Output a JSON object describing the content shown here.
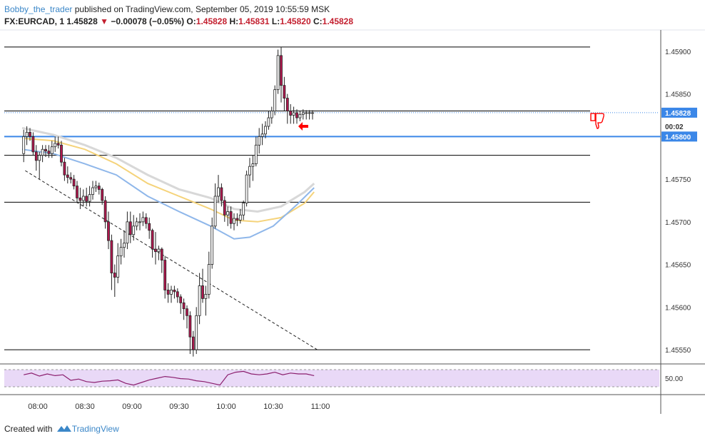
{
  "header": {
    "author": "Bobby_the_trader",
    "published": "published on TradingView.com, September 05, 2019 10:55:59 MSK"
  },
  "symbol_bar": {
    "symbol": "FX:EURCAD, 1",
    "last": "1.45828",
    "direction_icon": "down-triangle",
    "change": "−0.00078 (−0.05%)",
    "o_label": "O:",
    "o": "1.45828",
    "h_label": "H:",
    "h": "1.45831",
    "l_label": "L:",
    "l": "1.45820",
    "c_label": "C:",
    "c": "1.45828"
  },
  "footer": {
    "created_with": "Created with",
    "brand": "TradingView",
    "brand_icon": "tradingview-logo-icon"
  },
  "colors": {
    "up": "#ffffff",
    "down": "#b2184f",
    "candle_border": "#222222",
    "ma_fast": "#8fb7ea",
    "ma_mid": "#f5d37a",
    "ma_slow": "#d8d8d8",
    "hline": "#000000",
    "blue_level": "#3b87e8",
    "rsi_line": "#8b1e6e",
    "rsi_band": "#e9d9f7",
    "arrow": "#ff0000"
  },
  "chart_data": [
    {
      "type": "candlestick",
      "title": "",
      "xlabel": "",
      "ylabel": "",
      "ylim": [
        1.45535,
        1.45925
      ],
      "x_ticks": [
        "08:00",
        "08:30",
        "09:00",
        "09:30",
        "10:00",
        "10:30",
        "11:00"
      ],
      "y_ticks": [
        "1.45900",
        "1.45850",
        "1.45750",
        "1.45700",
        "1.45650",
        "1.45600",
        "1.45550"
      ],
      "price_labels": [
        {
          "text": "1.45828",
          "value": 1.45828,
          "kind": "last"
        },
        {
          "text": "00:02",
          "value": 1.45812,
          "kind": "countdown"
        },
        {
          "text": "1.45800",
          "value": 1.458,
          "kind": "level"
        }
      ],
      "horizontal_levels": [
        1.45905,
        1.4583,
        1.458,
        1.45778,
        1.45723,
        1.4555
      ],
      "trendline": [
        {
          "x": "07:52",
          "y": 1.4576
        },
        {
          "x": "10:58",
          "y": 1.4555
        }
      ],
      "series": [
        {
          "kind": "ohlc",
          "x": [
            "07:51",
            "07:53",
            "07:55",
            "07:57",
            "07:59",
            "08:01",
            "08:03",
            "08:05",
            "08:07",
            "08:09",
            "08:11",
            "08:13",
            "08:15",
            "08:17",
            "08:19",
            "08:21",
            "08:23",
            "08:25",
            "08:27",
            "08:29",
            "08:31",
            "08:33",
            "08:35",
            "08:37",
            "08:39",
            "08:41",
            "08:43",
            "08:45",
            "08:47",
            "08:49",
            "08:51",
            "08:53",
            "08:55",
            "08:57",
            "08:59",
            "09:01",
            "09:03",
            "09:05",
            "09:07",
            "09:09",
            "09:11",
            "09:13",
            "09:15",
            "09:17",
            "09:19",
            "09:21",
            "09:23",
            "09:25",
            "09:27",
            "09:29",
            "09:31",
            "09:33",
            "09:35",
            "09:37",
            "09:39",
            "09:41",
            "09:43",
            "09:45",
            "09:47",
            "09:49",
            "09:51",
            "09:53",
            "09:55",
            "09:57",
            "09:59",
            "10:01",
            "10:03",
            "10:05",
            "10:07",
            "10:09",
            "10:11",
            "10:13",
            "10:15",
            "10:17",
            "10:19",
            "10:21",
            "10:23",
            "10:25",
            "10:27",
            "10:29",
            "10:31",
            "10:33",
            "10:35",
            "10:37",
            "10:39",
            "10:41",
            "10:43",
            "10:45",
            "10:47",
            "10:49",
            "10:51",
            "10:53",
            "10:55"
          ],
          "open": [
            1.4578,
            1.458,
            1.45805,
            1.458,
            1.45782,
            1.45772,
            1.45778,
            1.45785,
            1.45783,
            1.4578,
            1.45788,
            1.45792,
            1.4579,
            1.4577,
            1.45755,
            1.45752,
            1.4575,
            1.45742,
            1.45728,
            1.45725,
            1.4573,
            1.45724,
            1.45732,
            1.4574,
            1.45742,
            1.45738,
            1.45725,
            1.457,
            1.45678,
            1.4564,
            1.45635,
            1.4566,
            1.4567,
            1.45675,
            1.457,
            1.45685,
            1.45695,
            1.457,
            1.457,
            1.45705,
            1.45698,
            1.4569,
            1.45668,
            1.45665,
            1.45668,
            1.45655,
            1.4562,
            1.45615,
            1.4562,
            1.45618,
            1.45612,
            1.45605,
            1.45598,
            1.4559,
            1.45565,
            1.4555,
            1.4559,
            1.45625,
            1.4561,
            1.45615,
            1.4565,
            1.45695,
            1.4573,
            1.4574,
            1.45725,
            1.45708,
            1.45712,
            1.45698,
            1.45704,
            1.45702,
            1.45708,
            1.45722,
            1.45755,
            1.45765,
            1.45768,
            1.4579,
            1.458,
            1.45803,
            1.45812,
            1.45822,
            1.4583,
            1.45855,
            1.45895,
            1.4586,
            1.45845,
            1.4583,
            1.45825,
            1.45828,
            1.45822,
            1.45826,
            1.45828,
            1.45828,
            1.45828
          ],
          "high": [
            1.45808,
            1.45812,
            1.4581,
            1.45805,
            1.4579,
            1.45782,
            1.4579,
            1.4579,
            1.4579,
            1.45795,
            1.458,
            1.458,
            1.45795,
            1.45775,
            1.45765,
            1.45758,
            1.45755,
            1.45748,
            1.4574,
            1.45738,
            1.4574,
            1.45742,
            1.45748,
            1.45748,
            1.45746,
            1.4574,
            1.4573,
            1.45712,
            1.45685,
            1.4565,
            1.45675,
            1.4568,
            1.4569,
            1.45712,
            1.45712,
            1.45708,
            1.45705,
            1.4571,
            1.45712,
            1.4571,
            1.45705,
            1.45692,
            1.45688,
            1.45672,
            1.4567,
            1.4566,
            1.45628,
            1.45625,
            1.45625,
            1.45622,
            1.45615,
            1.4561,
            1.45602,
            1.45595,
            1.45572,
            1.456,
            1.4564,
            1.45645,
            1.45625,
            1.45665,
            1.45705,
            1.45745,
            1.45755,
            1.45745,
            1.4573,
            1.45718,
            1.45718,
            1.4571,
            1.4571,
            1.45715,
            1.45725,
            1.4576,
            1.45775,
            1.45778,
            1.458,
            1.4581,
            1.45815,
            1.45818,
            1.4583,
            1.45835,
            1.4586,
            1.45902,
            1.45905,
            1.4587,
            1.4585,
            1.45838,
            1.45835,
            1.45832,
            1.4583,
            1.45832,
            1.45831,
            1.45831,
            1.45831
          ],
          "low": [
            1.4577,
            1.4579,
            1.45795,
            1.45778,
            1.4576,
            1.4575,
            1.4577,
            1.45776,
            1.45775,
            1.45775,
            1.45782,
            1.45786,
            1.45765,
            1.45748,
            1.45745,
            1.45745,
            1.45738,
            1.45722,
            1.45715,
            1.45718,
            1.45718,
            1.45718,
            1.45726,
            1.45735,
            1.45732,
            1.4572,
            1.45692,
            1.45668,
            1.4562,
            1.45612,
            1.45628,
            1.4565,
            1.45658,
            1.45668,
            1.45675,
            1.45678,
            1.4569,
            1.4569,
            1.45695,
            1.45692,
            1.4568,
            1.45658,
            1.4565,
            1.45655,
            1.4564,
            1.4561,
            1.45605,
            1.45605,
            1.4561,
            1.45605,
            1.45592,
            1.45585,
            1.45575,
            1.45545,
            1.45542,
            1.45545,
            1.4558,
            1.45605,
            1.4559,
            1.4561,
            1.45645,
            1.45692,
            1.45722,
            1.45718,
            1.457,
            1.45695,
            1.45692,
            1.4569,
            1.45695,
            1.45698,
            1.45702,
            1.45718,
            1.4574,
            1.45748,
            1.45765,
            1.4578,
            1.4579,
            1.45798,
            1.45808,
            1.45815,
            1.45825,
            1.4585,
            1.4584,
            1.4583,
            1.45815,
            1.45815,
            1.45815,
            1.45815,
            1.45818,
            1.4582,
            1.4582,
            1.4582,
            1.4582
          ],
          "close": [
            1.458,
            1.45805,
            1.458,
            1.45782,
            1.45772,
            1.45778,
            1.45785,
            1.45783,
            1.4578,
            1.45788,
            1.45792,
            1.4579,
            1.4577,
            1.45755,
            1.45752,
            1.4575,
            1.45742,
            1.45728,
            1.45725,
            1.4573,
            1.45724,
            1.45732,
            1.4574,
            1.45742,
            1.45738,
            1.45725,
            1.457,
            1.45678,
            1.4564,
            1.45635,
            1.4566,
            1.4567,
            1.45675,
            1.457,
            1.45685,
            1.45695,
            1.457,
            1.457,
            1.45705,
            1.45698,
            1.4569,
            1.45668,
            1.45665,
            1.45668,
            1.45655,
            1.4562,
            1.45615,
            1.4562,
            1.45618,
            1.45612,
            1.45605,
            1.45598,
            1.4559,
            1.45565,
            1.4555,
            1.4559,
            1.45625,
            1.4561,
            1.45615,
            1.4565,
            1.45695,
            1.4573,
            1.4574,
            1.45725,
            1.45708,
            1.45712,
            1.45698,
            1.45704,
            1.45702,
            1.45708,
            1.45722,
            1.45755,
            1.45765,
            1.45768,
            1.4579,
            1.458,
            1.45803,
            1.45812,
            1.45822,
            1.4583,
            1.45855,
            1.45895,
            1.4586,
            1.45845,
            1.4583,
            1.45825,
            1.45828,
            1.45822,
            1.45826,
            1.45828,
            1.45828,
            1.45828,
            1.45828
          ]
        },
        {
          "kind": "line",
          "color_key": "ma_slow",
          "x": [
            "07:50",
            "08:10",
            "08:30",
            "08:50",
            "09:10",
            "09:30",
            "09:50",
            "10:05",
            "10:20",
            "10:35",
            "10:50",
            "10:56"
          ],
          "values": [
            1.4581,
            1.45802,
            1.4579,
            1.45775,
            1.45755,
            1.45738,
            1.45728,
            1.45715,
            1.45712,
            1.45718,
            1.45735,
            1.45745
          ]
        },
        {
          "kind": "line",
          "color_key": "ma_mid",
          "x": [
            "07:50",
            "08:10",
            "08:30",
            "08:50",
            "09:10",
            "09:30",
            "09:50",
            "10:05",
            "10:20",
            "10:35",
            "10:50",
            "10:56"
          ],
          "values": [
            1.45798,
            1.45795,
            1.45785,
            1.45768,
            1.45745,
            1.4573,
            1.45715,
            1.45702,
            1.457,
            1.45705,
            1.45722,
            1.45735
          ]
        },
        {
          "kind": "line",
          "color_key": "ma_fast",
          "x": [
            "07:50",
            "08:10",
            "08:30",
            "08:50",
            "09:10",
            "09:30",
            "09:50",
            "10:05",
            "10:15",
            "10:30",
            "10:45",
            "10:56"
          ],
          "values": [
            1.45785,
            1.4578,
            1.45768,
            1.45755,
            1.4573,
            1.45712,
            1.45695,
            1.4568,
            1.45682,
            1.45695,
            1.4572,
            1.4574
          ]
        }
      ]
    },
    {
      "type": "line",
      "title": "",
      "xlabel": "",
      "ylabel": "",
      "ylim": [
        20,
        80
      ],
      "band": [
        30,
        70
      ],
      "y_ticks": [
        "50.00"
      ],
      "series": [
        {
          "kind": "line",
          "x": [
            "07:51",
            "07:56",
            "08:01",
            "08:06",
            "08:11",
            "08:16",
            "08:21",
            "08:26",
            "08:31",
            "08:36",
            "08:41",
            "08:46",
            "08:51",
            "08:56",
            "09:01",
            "09:06",
            "09:11",
            "09:16",
            "09:21",
            "09:26",
            "09:31",
            "09:36",
            "09:41",
            "09:46",
            "09:51",
            "09:56",
            "10:01",
            "10:06",
            "10:11",
            "10:16",
            "10:21",
            "10:26",
            "10:31",
            "10:36",
            "10:41",
            "10:46",
            "10:51",
            "10:56"
          ],
          "values": [
            58,
            62,
            55,
            60,
            56,
            58,
            45,
            48,
            42,
            40,
            43,
            44,
            46,
            38,
            34,
            40,
            46,
            50,
            54,
            52,
            49,
            48,
            44,
            42,
            38,
            34,
            58,
            64,
            66,
            60,
            58,
            60,
            64,
            58,
            62,
            60,
            60,
            56
          ]
        }
      ]
    }
  ]
}
